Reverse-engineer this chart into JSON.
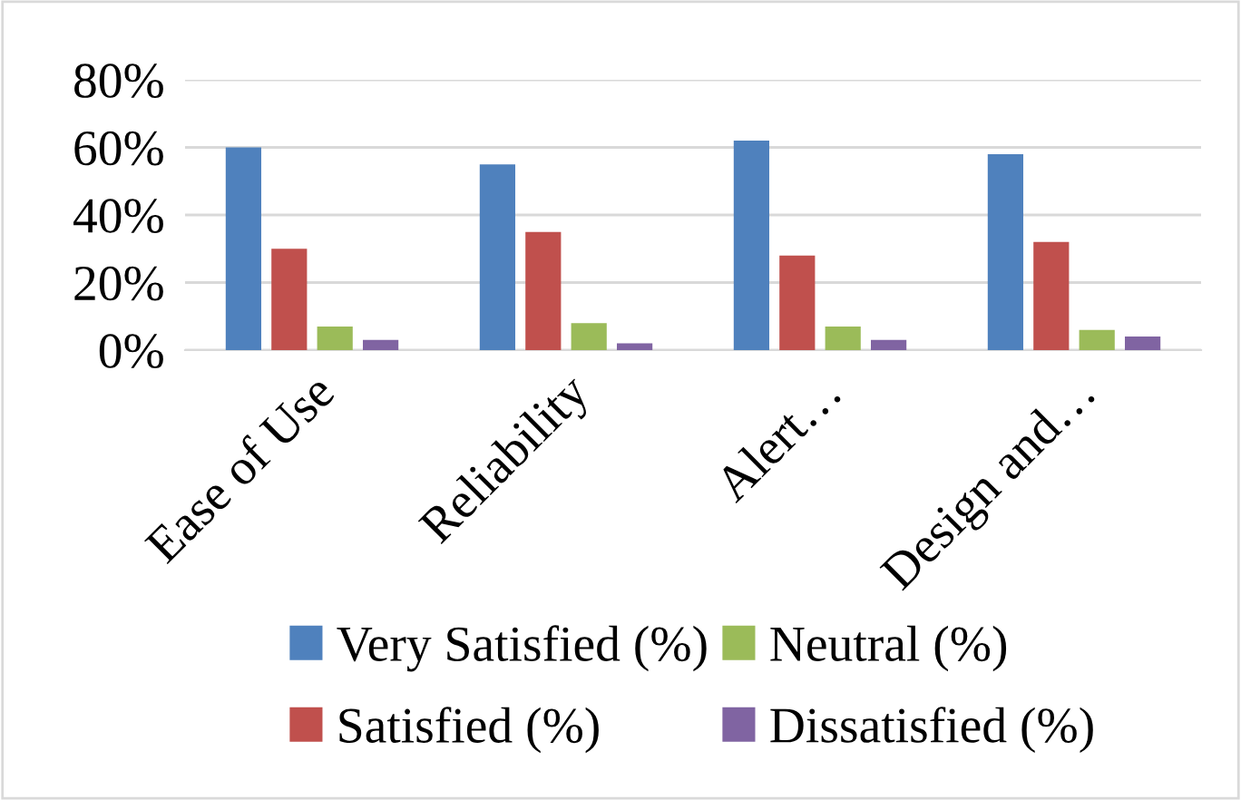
{
  "chart_data": {
    "type": "bar",
    "categories": [
      "Ease of Use",
      "Reliability",
      "Alert…",
      "Design and…"
    ],
    "series": [
      {
        "name": "Very Satisfied (%)",
        "color": "#4f81bd",
        "values": [
          60,
          55,
          62,
          58
        ]
      },
      {
        "name": "Satisfied (%)",
        "color": "#c0504d",
        "values": [
          30,
          35,
          28,
          32
        ]
      },
      {
        "name": "Neutral (%)",
        "color": "#9bbb59",
        "values": [
          7,
          8,
          7,
          6
        ]
      },
      {
        "name": "Dissatisfied (%)",
        "color": "#8064a2",
        "values": [
          3,
          2,
          3,
          4
        ]
      }
    ],
    "ylim": [
      0,
      80
    ],
    "yticks": [
      {
        "value": 0,
        "label": "0%"
      },
      {
        "value": 20,
        "label": "20%"
      },
      {
        "value": 40,
        "label": "40%"
      },
      {
        "value": 60,
        "label": "60%"
      },
      {
        "value": 80,
        "label": "80%"
      }
    ],
    "grid": "y",
    "legend": "bottom"
  }
}
